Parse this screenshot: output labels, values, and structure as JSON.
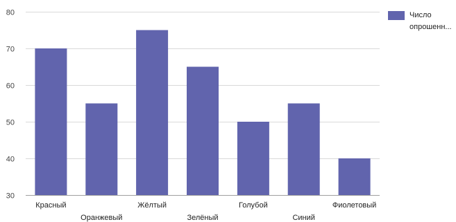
{
  "chart_data": {
    "type": "bar",
    "categories": [
      "Красный",
      "Оранжевый",
      "Жёлтый",
      "Зелёный",
      "Голубой",
      "Синий",
      "Фиолетовый"
    ],
    "series": [
      {
        "name": "Число опрошенн...",
        "values": [
          70,
          55,
          75,
          65,
          50,
          55,
          40
        ]
      }
    ],
    "ylim": [
      30,
      80
    ],
    "yticks": [
      30,
      40,
      50,
      60,
      70,
      80
    ],
    "grid": true,
    "legend_position": "top-right",
    "title": "",
    "xlabel": "",
    "ylabel": ""
  },
  "legend": {
    "line1": "Число",
    "line2": "опрошенн..."
  },
  "colors": {
    "bar": "#6164ad",
    "grid": "#d9d9d9",
    "axis": "#9e9e9e"
  }
}
